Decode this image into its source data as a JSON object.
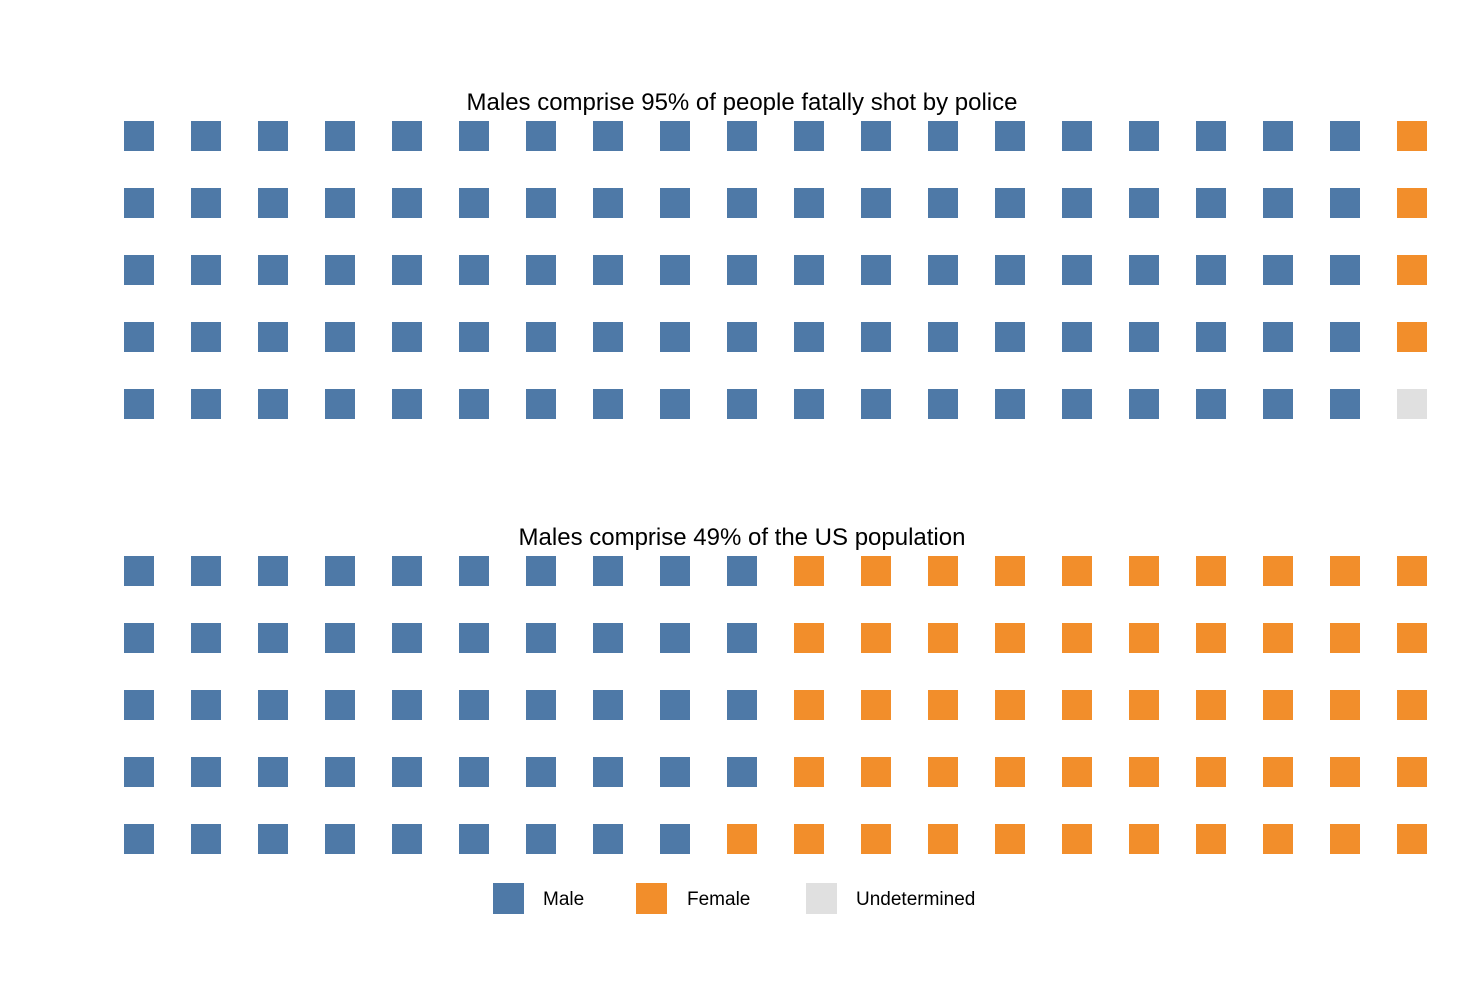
{
  "chart_data": [
    {
      "type": "waffle",
      "title": "Males comprise 95% of people fatally shot by police",
      "rows": 5,
      "columns": 20,
      "fill_order": "column-major",
      "categories": [
        "Male",
        "Female",
        "Undetermined"
      ],
      "values": [
        95,
        4,
        1
      ],
      "colors": [
        "#4e79a7",
        "#f28e2b",
        "#e0e0e0"
      ]
    },
    {
      "type": "waffle",
      "title": "Males comprise 49% of the US population",
      "rows": 5,
      "columns": 20,
      "fill_order": "column-major",
      "categories": [
        "Male",
        "Female",
        "Undetermined"
      ],
      "values": [
        49,
        51,
        0
      ],
      "colors": [
        "#4e79a7",
        "#f28e2b",
        "#e0e0e0"
      ]
    }
  ],
  "legend": {
    "placement": "bottom",
    "items": [
      {
        "label": "Male",
        "color": "#4e79a7"
      },
      {
        "label": "Female",
        "color": "#f28e2b"
      },
      {
        "label": "Undetermined",
        "color": "#e0e0e0"
      }
    ]
  }
}
